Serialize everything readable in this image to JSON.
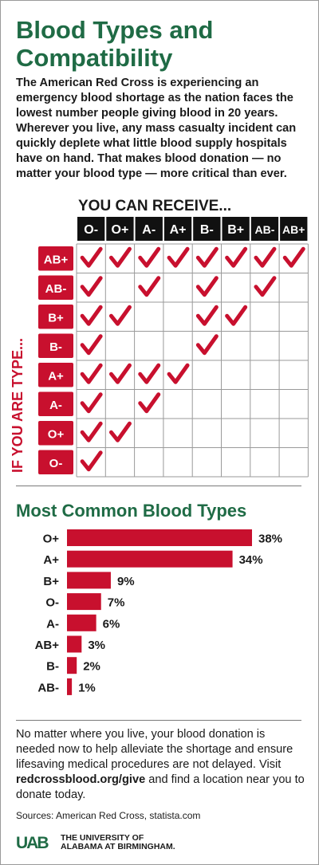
{
  "title": "Blood Types and Compatibility",
  "intro": "The American Red Cross is experiencing an emergency blood shortage as the nation faces the lowest number people giving blood in 20 years. Wherever you live, any mass casualty incident can quickly deplete what little blood supply hospitals have on hand. That makes blood donation — no matter your blood type — more critical than ever.",
  "compatibility": {
    "column_header": "YOU CAN RECEIVE...",
    "row_header": "IF YOU ARE TYPE...",
    "columns": [
      "O-",
      "O+",
      "A-",
      "A+",
      "B-",
      "B+",
      "AB-",
      "AB+"
    ],
    "rows": [
      {
        "type": "AB+",
        "receives": [
          1,
          1,
          1,
          1,
          1,
          1,
          1,
          1
        ]
      },
      {
        "type": "AB-",
        "receives": [
          1,
          0,
          1,
          0,
          1,
          0,
          1,
          0
        ]
      },
      {
        "type": "B+",
        "receives": [
          1,
          1,
          0,
          0,
          1,
          1,
          0,
          0
        ]
      },
      {
        "type": "B-",
        "receives": [
          1,
          0,
          0,
          0,
          1,
          0,
          0,
          0
        ]
      },
      {
        "type": "A+",
        "receives": [
          1,
          1,
          1,
          1,
          0,
          0,
          0,
          0
        ]
      },
      {
        "type": "A-",
        "receives": [
          1,
          0,
          1,
          0,
          0,
          0,
          0,
          0
        ]
      },
      {
        "type": "O+",
        "receives": [
          1,
          1,
          0,
          0,
          0,
          0,
          0,
          0
        ]
      },
      {
        "type": "O-",
        "receives": [
          1,
          0,
          0,
          0,
          0,
          0,
          0,
          0
        ]
      }
    ]
  },
  "most_common_title": "Most Common Blood Types",
  "chart_data": {
    "type": "bar",
    "orientation": "horizontal",
    "categories": [
      "O+",
      "A+",
      "B+",
      "O-",
      "A-",
      "AB+",
      "B-",
      "AB-"
    ],
    "values": [
      38,
      34,
      9,
      7,
      6,
      3,
      2,
      1
    ],
    "value_labels": [
      "38%",
      "34%",
      "9%",
      "7%",
      "6%",
      "3%",
      "2%",
      "1%"
    ],
    "xlim": [
      0,
      38
    ],
    "bar_color": "#c8102e"
  },
  "footer": {
    "before": "No matter where you live, your blood donation is needed now to help alleviate the shortage and ensure lifesaving medical procedures are not delayed. Visit ",
    "link": "redcrossblood.org/give",
    "after": " and find a location near you to donate today."
  },
  "sources": "Sources: American Red Cross, statista.com",
  "logo": {
    "mark": "UAB",
    "line1": "THE UNIVERSITY OF",
    "line2": "ALABAMA AT BIRMINGHAM."
  },
  "colors": {
    "green": "#1f6b45",
    "red": "#c8102e",
    "black": "#111111"
  }
}
